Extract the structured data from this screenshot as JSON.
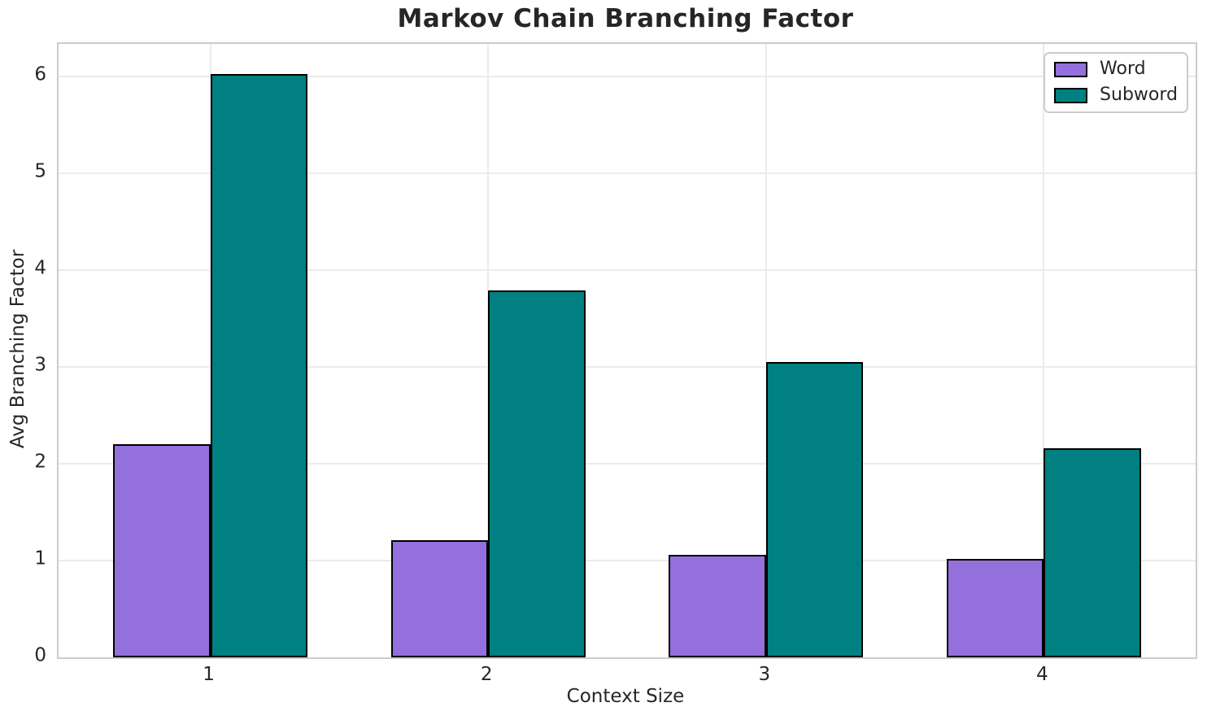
{
  "chart_data": {
    "type": "bar",
    "title": "Markov Chain Branching Factor",
    "xlabel": "Context Size",
    "ylabel": "Avg Branching Factor",
    "categories": [
      "1",
      "2",
      "3",
      "4"
    ],
    "series": [
      {
        "name": "Word",
        "color": "#9370DB",
        "values": [
          2.2,
          1.21,
          1.06,
          1.02
        ]
      },
      {
        "name": "Subword",
        "color": "#008080",
        "values": [
          6.03,
          3.79,
          3.05,
          2.16
        ]
      }
    ],
    "yticks": [
      0,
      1,
      2,
      3,
      4,
      5,
      6
    ],
    "ylim": [
      0,
      6.34
    ],
    "bar_width": 0.35,
    "grid": true,
    "legend_position": "upper right",
    "bar_edge_color": "#000000",
    "grid_color": "#ebebeb",
    "spine_color": "#cccccc",
    "text_color": "#262626"
  }
}
